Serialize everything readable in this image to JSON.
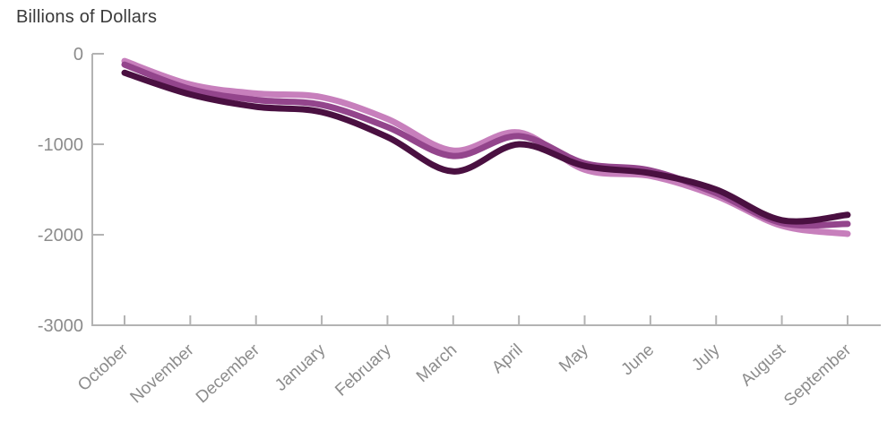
{
  "chart_data": {
    "type": "line",
    "title": "Billions of Dollars",
    "categories": [
      "October",
      "November",
      "December",
      "January",
      "February",
      "March",
      "April",
      "May",
      "June",
      "July",
      "August",
      "September"
    ],
    "series": [
      {
        "name": "light-pink-line",
        "color": "#C77FBC",
        "values": [
          -80,
          -340,
          -440,
          -480,
          -720,
          -1070,
          -870,
          -1280,
          -1350,
          -1570,
          -1900,
          -1990
        ]
      },
      {
        "name": "medium-magenta-line",
        "color": "#93458C",
        "values": [
          -120,
          -390,
          -510,
          -565,
          -810,
          -1130,
          -910,
          -1210,
          -1290,
          -1540,
          -1870,
          -1880
        ]
      },
      {
        "name": "dark-purple-line",
        "color": "#4A1041",
        "values": [
          -210,
          -450,
          -585,
          -645,
          -920,
          -1300,
          -1000,
          -1240,
          -1320,
          -1500,
          -1840,
          -1780
        ]
      }
    ],
    "xlabel": "",
    "ylabel": "",
    "ylim": [
      -3000,
      0
    ],
    "yticks": [
      0,
      -1000,
      -2000,
      -3000
    ],
    "grid": false,
    "legend": "none",
    "colors": {
      "axis": "#B3B3B3",
      "tick_label": "#8C8C8C",
      "title": "#3A3A3A"
    }
  }
}
